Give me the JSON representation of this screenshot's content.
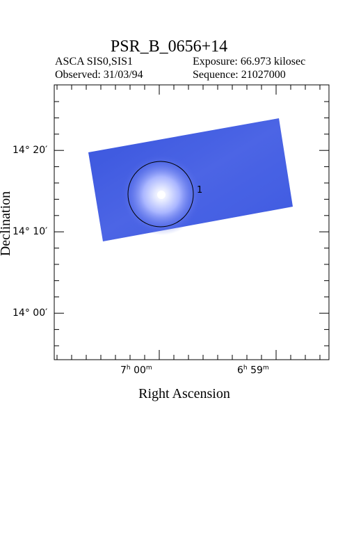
{
  "title": "PSR_B_0656+14",
  "header": {
    "instrument": "ASCA SIS0,SIS1",
    "exposure": "Exposure: 66.973 kilosec",
    "observed": "Observed: 31/03/94",
    "sequence": "Sequence: 21027000"
  },
  "axes": {
    "x_title": "Right Ascension",
    "y_title": "Declination",
    "y_ticks": [
      {
        "deg": "14",
        "min": "20"
      },
      {
        "deg": "14",
        "min": "10"
      },
      {
        "deg": "14",
        "min": "00"
      }
    ],
    "x_ticks": [
      {
        "h": "7",
        "m": "00"
      },
      {
        "h": "6",
        "m": "59"
      }
    ]
  },
  "source_marker": {
    "label": "1"
  },
  "colors": {
    "image_blue": "#3a55e0",
    "image_light": "#9aa6ff",
    "source_core": "#ffffff"
  }
}
